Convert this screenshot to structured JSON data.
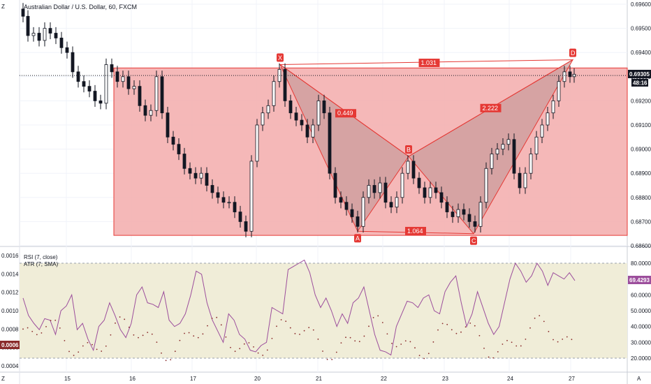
{
  "title": "Australian Dollar / U.S. Dollar, 60, FXCM",
  "price": {
    "current": "0.69305",
    "countdown": "48:16",
    "y_ticks": [
      "0.69600",
      "0.69500",
      "0.69400",
      "0.69300",
      "0.69200",
      "0.69100",
      "0.69000",
      "0.68900",
      "0.68800",
      "0.68700",
      "0.68600"
    ]
  },
  "pattern": {
    "points": {
      "X": "X",
      "A": "A",
      "B": "B",
      "C": "C",
      "D": "D"
    },
    "ratios": {
      "xb": "0.449",
      "xd": "1.031",
      "ac": "1.064",
      "bd": "2.222"
    },
    "color": "#e53935",
    "fill": "#f4b0b0"
  },
  "indicator": {
    "rsi_label": "RSI (7, close)",
    "atr_label": "ATR (7, SMA)",
    "rsi_value": "69.4293",
    "atr_value": "0.0006",
    "left_ticks": [
      "0.0016",
      "0.0014",
      "0.0012",
      "0.0010",
      "0.0008",
      "0.0006",
      "0.0004"
    ],
    "right_ticks": [
      "80.0000",
      "70.0000",
      "60.0000",
      "50.0000",
      "40.0000",
      "30.0000",
      "20.0000"
    ],
    "rsi_color": "#9c4e9c",
    "atr_color": "#8a2b2b",
    "band_color": "#f0edd8"
  },
  "x_ticks": [
    "15",
    "16",
    "17",
    "20",
    "21",
    "22",
    "23",
    "24",
    "27"
  ],
  "corner_left_top": "Z",
  "corner_left_bottom": "Z",
  "corner_right_bottom": "A",
  "chart_data": [
    {
      "type": "candlestick",
      "title": "Australian Dollar / U.S. Dollar, 60, FXCM",
      "ylim": [
        0.686,
        0.6965
      ],
      "x": [
        "15",
        "16",
        "17",
        "20",
        "21",
        "22",
        "23",
        "24",
        "27"
      ],
      "last_price": 0.69305,
      "pattern_points": [
        {
          "label": "X",
          "value": 0.6935
        },
        {
          "label": "A",
          "value": 0.6866
        },
        {
          "label": "B",
          "value": 0.6897
        },
        {
          "label": "C",
          "value": 0.6865
        },
        {
          "label": "D",
          "value": 0.6937
        }
      ]
    },
    {
      "type": "line",
      "series": [
        {
          "name": "RSI (7, close)",
          "last": 69.4293
        },
        {
          "name": "ATR (7, SMA)",
          "last": 0.0006
        }
      ],
      "ylim_left": [
        0.0004,
        0.0016
      ],
      "ylim_right": [
        20,
        80
      ]
    }
  ]
}
